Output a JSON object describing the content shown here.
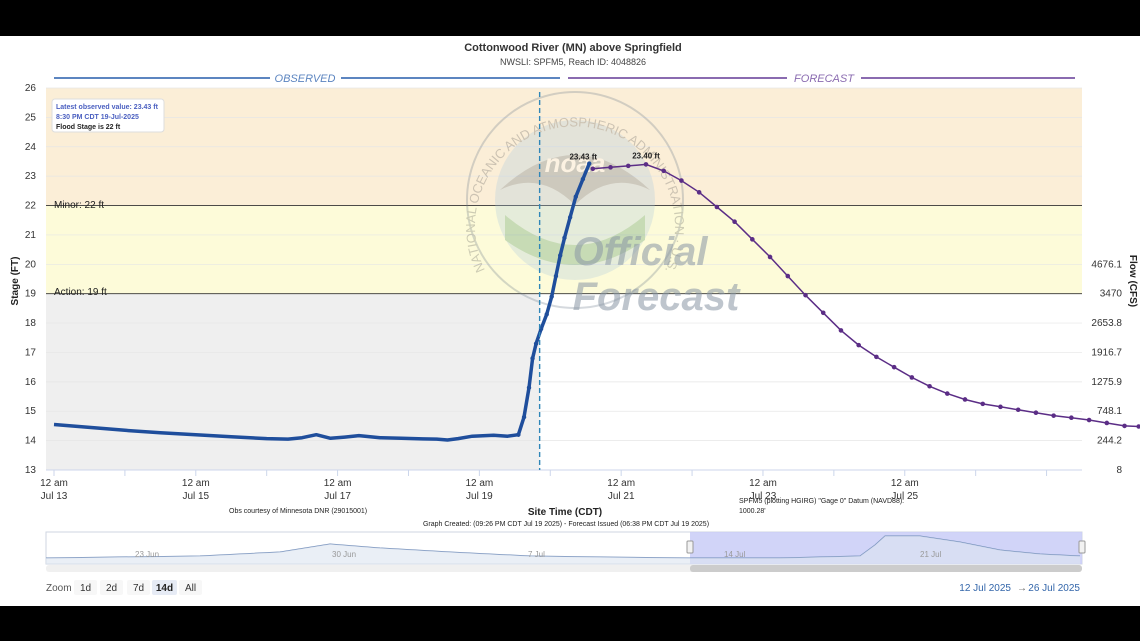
{
  "title": "Cottonwood River (MN) above Springfield",
  "subtitle": "NWSLI: SPFM5, Reach ID: 4048826",
  "sections": {
    "observed": "OBSERVED",
    "forecast": "FORECAST"
  },
  "infobox": {
    "latest": "Latest observed value: 23.43 ft",
    "time": "8:30 PM CDT 19-Jul-2025",
    "flood": "Flood Stage is 22 ft"
  },
  "watermark": {
    "line1": "Official",
    "line2": "Forecast",
    "seal_text": "NATIONAL OCEANIC AND ATMOSPHERIC ADMINISTRATION · U.S. DEPARTMENT OF COMMERCE",
    "seal_center": "noaa"
  },
  "thresholds": {
    "minor": "Minor: 22 ft",
    "action": "Action: 19 ft"
  },
  "labels": {
    "obs_peak": "23.43 ft",
    "fc_peak": "23.40 ft"
  },
  "credits": {
    "obs": "Obs courtesy of Minnesota DNR (29015001)",
    "datum": "SPFM5 (plotting HGIRG) \"Gage 0\" Datum (NAVD88):",
    "datum_value": "1000.28'",
    "created": "Graph Created: (09:26 PM CDT Jul 19 2025) - Forecast Issued (06:38 PM CDT Jul 19 2025)"
  },
  "navigator": {
    "labels": [
      "23 Jun",
      "30 Jun",
      "7 Jul",
      "14 Jul",
      "21 Jul"
    ]
  },
  "zoom": {
    "label": "Zoom",
    "buttons": [
      "1d",
      "2d",
      "7d",
      "14d",
      "All"
    ],
    "active": "14d"
  },
  "range": {
    "from": "12 Jul 2025",
    "arrow": "→",
    "to": "26 Jul 2025"
  },
  "colors": {
    "observed": "#1f4e9c",
    "forecast": "#5b2d86",
    "flood_zone": "#fbeed7",
    "minor_zone": "#fdfbd9",
    "action_zone": "#efefef",
    "observed_header": "#5c85c0",
    "forecast_header": "#8a6bb0"
  },
  "chart_data": {
    "type": "line",
    "xlabel": "Site Time (CDT)",
    "ylabel": "Stage (FT)",
    "y2label": "Flow (CFS)",
    "ylim": [
      13,
      26
    ],
    "y_ticks": [
      13,
      14,
      15,
      16,
      17,
      18,
      19,
      20,
      21,
      22,
      23,
      24,
      25,
      26
    ],
    "y2_ticks": [
      {
        "stage": 13,
        "label": "8"
      },
      {
        "stage": 14,
        "label": "244.2"
      },
      {
        "stage": 15,
        "label": "748.1"
      },
      {
        "stage": 16,
        "label": "1275.9"
      },
      {
        "stage": 17,
        "label": "1916.7"
      },
      {
        "stage": 18,
        "label": "2653.8"
      },
      {
        "stage": 19,
        "label": "3470"
      },
      {
        "stage": 20,
        "label": "4676.1"
      }
    ],
    "x_range_days": [
      0,
      14.5
    ],
    "x_ticks": [
      {
        "day": 0,
        "line1": "12 am",
        "line2": "Jul 13"
      },
      {
        "day": 2,
        "line1": "12 am",
        "line2": "Jul 15"
      },
      {
        "day": 4,
        "line1": "12 am",
        "line2": "Jul 17"
      },
      {
        "day": 6,
        "line1": "12 am",
        "line2": "Jul 19"
      },
      {
        "day": 8,
        "line1": "12 am",
        "line2": "Jul 21"
      },
      {
        "day": 10,
        "line1": "12 am",
        "line2": "Jul 23"
      },
      {
        "day": 12,
        "line1": "12 am",
        "line2": "Jul 25"
      }
    ],
    "flood_stage": 22,
    "action_stage": 19,
    "observed_end_day": 6.85,
    "series": [
      {
        "name": "Observed",
        "points": [
          [
            0,
            14.55
          ],
          [
            0.5,
            14.45
          ],
          [
            1,
            14.35
          ],
          [
            1.5,
            14.27
          ],
          [
            2,
            14.2
          ],
          [
            2.5,
            14.13
          ],
          [
            3,
            14.07
          ],
          [
            3.3,
            14.05
          ],
          [
            3.5,
            14.1
          ],
          [
            3.7,
            14.2
          ],
          [
            3.9,
            14.08
          ],
          [
            4.1,
            14.12
          ],
          [
            4.3,
            14.17
          ],
          [
            4.6,
            14.1
          ],
          [
            4.9,
            14.08
          ],
          [
            5.2,
            14.06
          ],
          [
            5.4,
            14.05
          ],
          [
            5.55,
            14.02
          ],
          [
            5.7,
            14.07
          ],
          [
            5.9,
            14.15
          ],
          [
            6.2,
            14.18
          ],
          [
            6.4,
            14.15
          ],
          [
            6.55,
            14.2
          ],
          [
            6.63,
            14.8
          ],
          [
            6.7,
            15.8
          ],
          [
            6.75,
            16.8
          ],
          [
            6.8,
            17.3
          ],
          [
            6.87,
            17.8
          ],
          [
            6.95,
            18.3
          ],
          [
            7.02,
            18.9
          ],
          [
            7.08,
            19.6
          ],
          [
            7.14,
            20.3
          ],
          [
            7.2,
            20.9
          ],
          [
            7.28,
            21.6
          ],
          [
            7.36,
            22.3
          ],
          [
            7.46,
            22.9
          ],
          [
            7.55,
            23.43
          ]
        ]
      },
      {
        "name": "Forecast",
        "points": [
          [
            7.6,
            23.25
          ],
          [
            7.85,
            23.3
          ],
          [
            8.1,
            23.35
          ],
          [
            8.35,
            23.4
          ],
          [
            8.6,
            23.18
          ],
          [
            8.85,
            22.85
          ],
          [
            9.1,
            22.45
          ],
          [
            9.35,
            21.95
          ],
          [
            9.6,
            21.45
          ],
          [
            9.85,
            20.85
          ],
          [
            10.1,
            20.25
          ],
          [
            10.35,
            19.6
          ],
          [
            10.6,
            18.95
          ],
          [
            10.85,
            18.35
          ],
          [
            11.1,
            17.75
          ],
          [
            11.35,
            17.25
          ],
          [
            11.6,
            16.85
          ],
          [
            11.85,
            16.5
          ],
          [
            12.1,
            16.15
          ],
          [
            12.35,
            15.85
          ],
          [
            12.6,
            15.6
          ],
          [
            12.85,
            15.4
          ],
          [
            13.1,
            15.25
          ],
          [
            13.35,
            15.15
          ],
          [
            13.6,
            15.05
          ],
          [
            13.85,
            14.95
          ],
          [
            14.1,
            14.85
          ],
          [
            14.35,
            14.78
          ],
          [
            14.6,
            14.7
          ],
          [
            14.85,
            14.6
          ],
          [
            15.1,
            14.5
          ],
          [
            15.3,
            14.48
          ]
        ]
      }
    ]
  }
}
